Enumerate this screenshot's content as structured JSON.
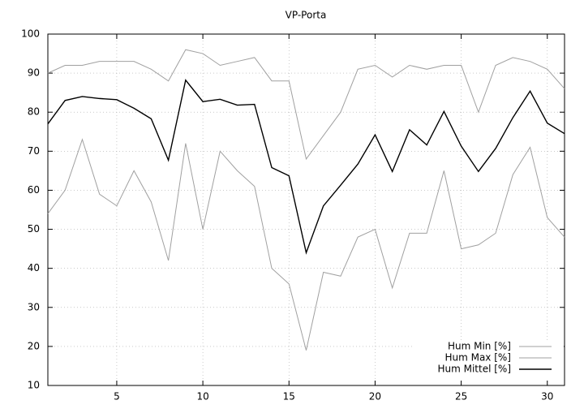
{
  "chart_data": {
    "type": "line",
    "title": "VP-Porta",
    "x": [
      1,
      2,
      3,
      4,
      5,
      6,
      7,
      8,
      9,
      10,
      11,
      12,
      13,
      14,
      15,
      16,
      17,
      18,
      19,
      20,
      21,
      22,
      23,
      24,
      25,
      26,
      27,
      28,
      29,
      30,
      31
    ],
    "series": [
      {
        "name": "Hum Min [%]",
        "color": "#a0a0a0",
        "values": [
          54,
          60,
          73,
          59,
          56,
          65,
          57,
          42,
          72,
          50,
          70,
          65,
          61,
          40,
          36,
          19,
          39,
          38,
          48,
          50,
          35,
          49,
          49,
          65,
          45,
          46,
          49,
          64,
          71,
          53,
          48
        ]
      },
      {
        "name": "Hum Max [%]",
        "color": "#a0a0a0",
        "values": [
          90,
          92,
          92,
          93,
          93,
          93,
          91,
          88,
          96,
          95,
          92,
          93,
          94,
          88,
          88,
          68,
          74,
          80,
          91,
          92,
          89,
          92,
          91,
          92,
          92,
          80,
          92,
          94,
          93,
          91,
          86
        ]
      },
      {
        "name": "Hum Mittel [%]",
        "color": "#000000",
        "values": [
          77,
          83,
          84,
          83.5,
          83.2,
          81,
          78.3,
          67.7,
          88.2,
          82.7,
          83.3,
          81.8,
          82,
          65.8,
          63.7,
          44,
          56,
          61.3,
          66.7,
          74.2,
          64.8,
          75.5,
          71.6,
          80.2,
          71.3,
          64.8,
          70.7,
          78.6,
          85.4,
          77.2,
          74.5
        ]
      }
    ],
    "xlim": [
      1,
      31
    ],
    "xticks": [
      5,
      10,
      15,
      20,
      25,
      30
    ],
    "ylim": [
      10,
      100
    ],
    "yticks": [
      10,
      20,
      30,
      40,
      50,
      60,
      70,
      80,
      90,
      100
    ],
    "grid": true,
    "legend": "bottom-right"
  }
}
